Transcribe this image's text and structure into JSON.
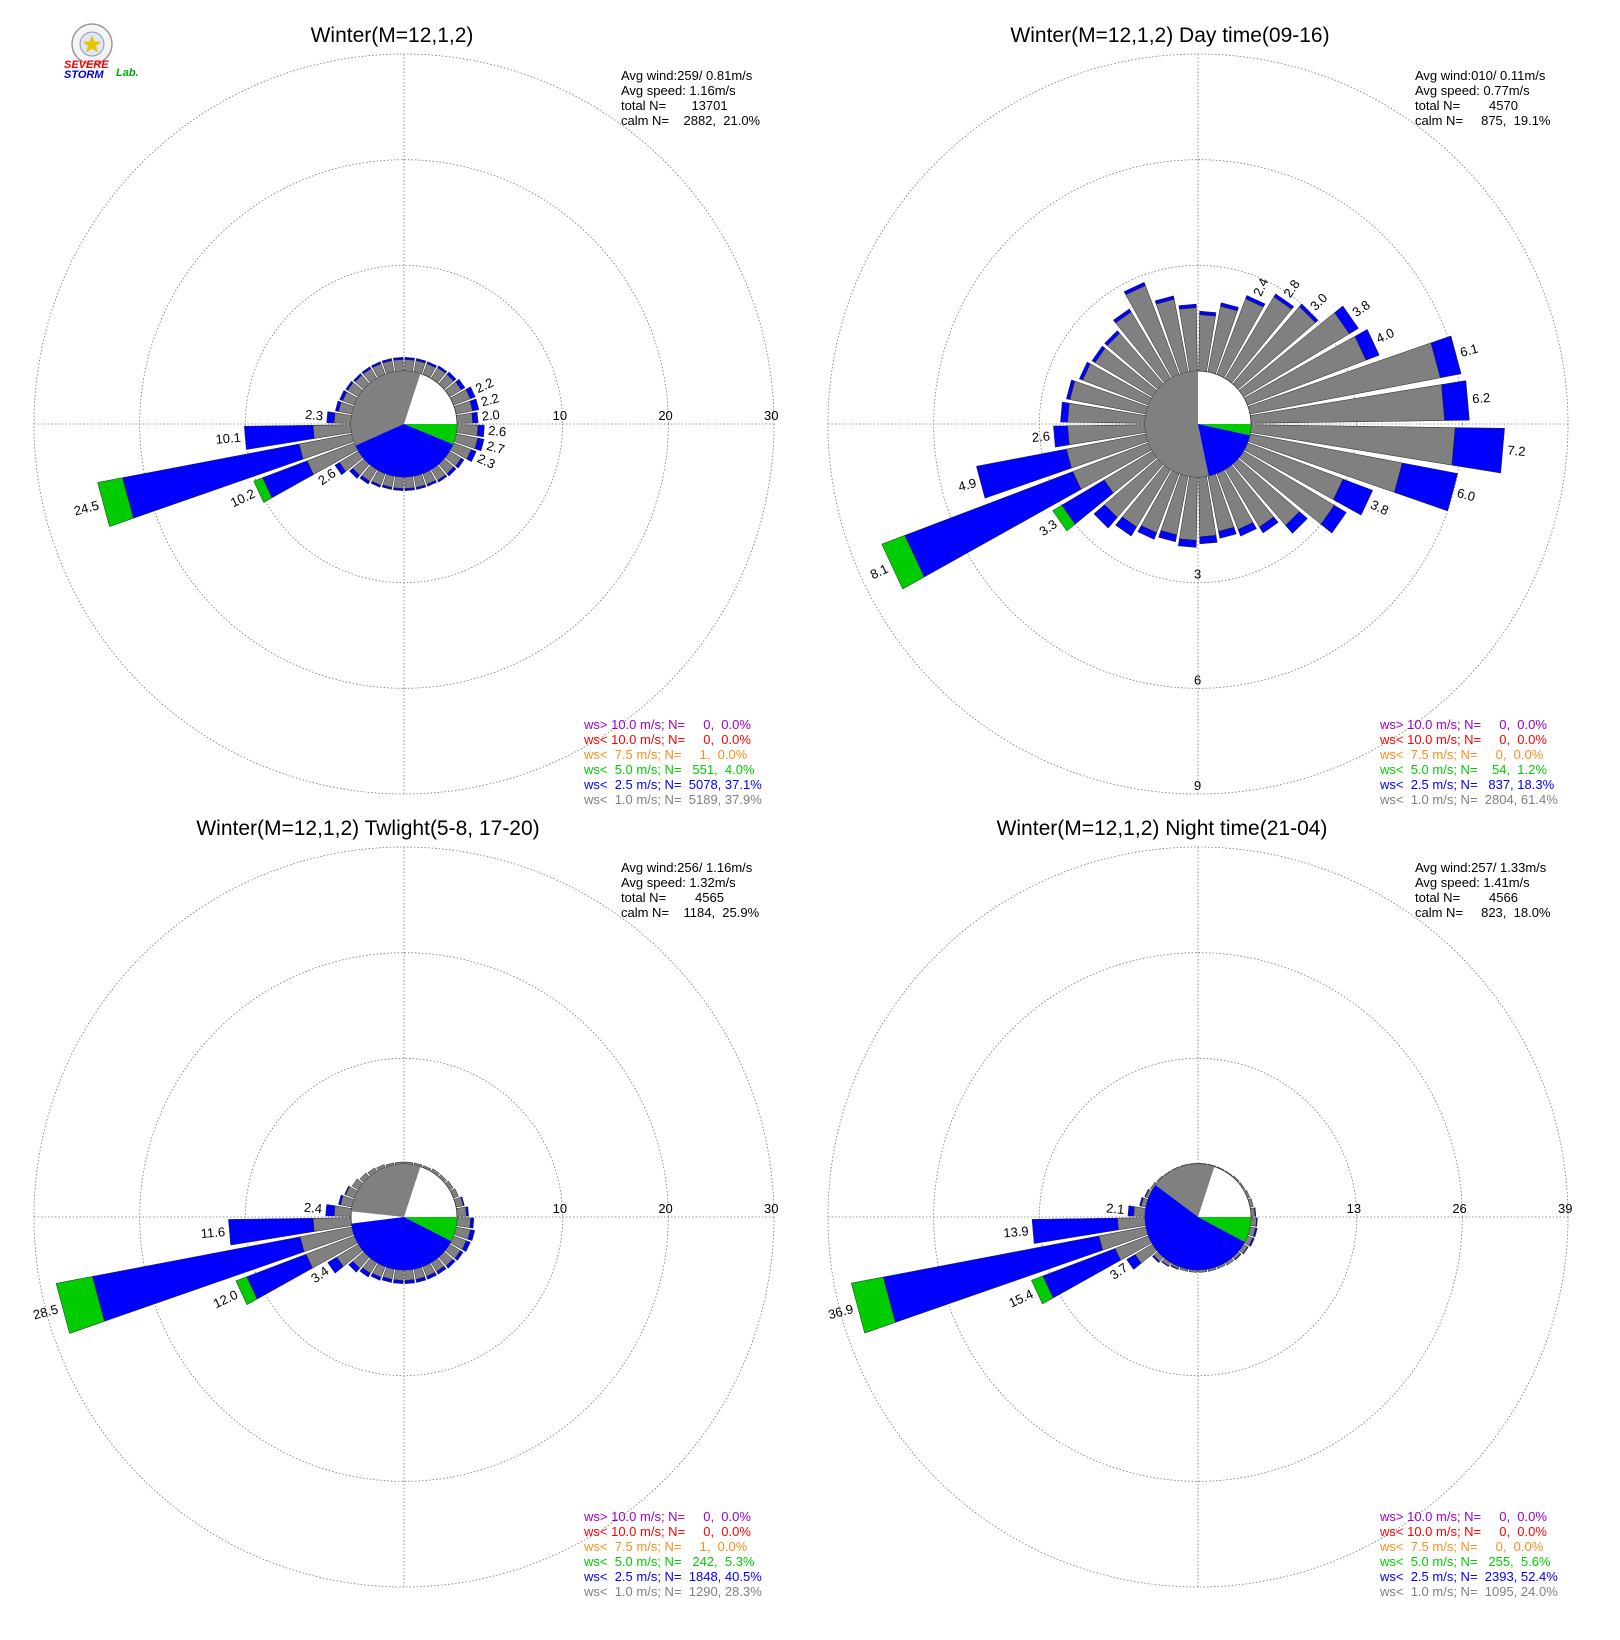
{
  "logo": {
    "text_severe": "SEVERE",
    "text_storm": "STORM",
    "text_lab": "Lab."
  },
  "colors": {
    "ws_gt10": "#9900cc",
    "ws_lt10": "#ff0000",
    "ws_lt7_5": "#ff8c1a",
    "ws_lt5": "#00cc00",
    "ws_lt2_5": "#0000ff",
    "ws_lt1": "#808080"
  },
  "chart_data": [
    {
      "type": "windrose",
      "title": "Winter(M=12,1,2)",
      "stats": [
        "Avg wind:259/ 0.81m/s",
        "Avg speed: 1.16m/s",
        "total N=       13701",
        "calm N=    2882,  21.0%"
      ],
      "rmax": 30,
      "ring_labels": [
        "10",
        "20",
        "30"
      ],
      "ring_label_dir": "east",
      "calm_pie": [
        {
          "category": "ws< 1.0",
          "percent": 37.9
        },
        {
          "category": "ws< 2.5",
          "percent": 37.1
        },
        {
          "category": "ws< 5.0",
          "percent": 4.0
        },
        {
          "category": "ws< 7.5",
          "percent": 0.0
        }
      ],
      "petals": [
        {
          "dir": 5,
          "total": 1.3,
          "blue": 0.2
        },
        {
          "dir": 15,
          "total": 1.3,
          "blue": 0.2
        },
        {
          "dir": 25,
          "total": 1.3,
          "blue": 0.2
        },
        {
          "dir": 35,
          "total": 1.4,
          "blue": 0.2
        },
        {
          "dir": 45,
          "total": 1.5,
          "blue": 0.3
        },
        {
          "dir": 55,
          "total": 1.7,
          "blue": 0.4
        },
        {
          "dir": 65,
          "total": 2.2,
          "blue": 0.5,
          "label": "2.2"
        },
        {
          "dir": 75,
          "total": 2.2,
          "blue": 0.6,
          "label": "2.2"
        },
        {
          "dir": 85,
          "total": 2.0,
          "blue": 0.5,
          "label": "2.0"
        },
        {
          "dir": 95,
          "total": 2.6,
          "blue": 0.6,
          "label": "2.6"
        },
        {
          "dir": 105,
          "total": 2.7,
          "blue": 0.6,
          "label": "2.7"
        },
        {
          "dir": 115,
          "total": 2.3,
          "blue": 0.5,
          "label": "2.3"
        },
        {
          "dir": 125,
          "total": 1.6,
          "blue": 0.3
        },
        {
          "dir": 135,
          "total": 1.5,
          "blue": 0.3
        },
        {
          "dir": 145,
          "total": 1.4,
          "blue": 0.2
        },
        {
          "dir": 155,
          "total": 1.3,
          "blue": 0.2
        },
        {
          "dir": 165,
          "total": 1.3,
          "blue": 0.2
        },
        {
          "dir": 175,
          "total": 1.3,
          "blue": 0.2
        },
        {
          "dir": 185,
          "total": 1.3,
          "blue": 0.2
        },
        {
          "dir": 195,
          "total": 1.3,
          "blue": 0.2
        },
        {
          "dir": 205,
          "total": 1.4,
          "blue": 0.2
        },
        {
          "dir": 215,
          "total": 1.6,
          "blue": 0.3
        },
        {
          "dir": 225,
          "total": 1.8,
          "blue": 0.4
        },
        {
          "dir": 235,
          "total": 2.6,
          "blue": 0.5,
          "label": "2.6"
        },
        {
          "dir": 245,
          "total": 10.2,
          "blue": 4.5,
          "green": 0.9,
          "label": "10.2"
        },
        {
          "dir": 255,
          "total": 24.5,
          "blue": 17.0,
          "green": 2.4,
          "label": "24.5"
        },
        {
          "dir": 265,
          "total": 10.1,
          "blue": 6.5,
          "label": "10.1"
        },
        {
          "dir": 275,
          "total": 2.3,
          "blue": 0.7,
          "label": "2.3"
        },
        {
          "dir": 285,
          "total": 1.6,
          "blue": 0.3
        },
        {
          "dir": 295,
          "total": 1.5,
          "blue": 0.3
        },
        {
          "dir": 305,
          "total": 1.4,
          "blue": 0.2
        },
        {
          "dir": 315,
          "total": 1.3,
          "blue": 0.2
        },
        {
          "dir": 325,
          "total": 1.3,
          "blue": 0.2
        },
        {
          "dir": 335,
          "total": 1.3,
          "blue": 0.2
        },
        {
          "dir": 345,
          "total": 1.3,
          "blue": 0.2
        },
        {
          "dir": 355,
          "total": 1.3,
          "blue": 0.2
        }
      ],
      "legend": [
        {
          "text": "ws> 10.0 m/s; N=     0,  0.0%",
          "color": "#9900cc"
        },
        {
          "text": "ws< 10.0 m/s; N=     0,  0.0%",
          "color": "#ff0000"
        },
        {
          "text": "ws<  7.5 m/s; N=     1,  0.0%",
          "color": "#ff8c1a"
        },
        {
          "text": "ws<  5.0 m/s; N=   551,  4.0%",
          "color": "#00cc00"
        },
        {
          "text": "ws<  2.5 m/s; N=  5078, 37.1%",
          "color": "#0000ff"
        },
        {
          "text": "ws<  1.0 m/s; N=  5189, 37.9%",
          "color": "#808080"
        }
      ]
    },
    {
      "type": "windrose",
      "title": "Winter(M=12,1,2) Day time(09-16)",
      "stats": [
        "Avg wind:010/ 0.11m/s",
        "Avg speed: 0.77m/s",
        "total N=        4570",
        "calm N=     875,  19.1%"
      ],
      "rmax": 9,
      "ring_labels": [
        "3",
        "6",
        "9"
      ],
      "ring_label_dir": "south",
      "calm_pie": [
        {
          "category": "ws< 1.0",
          "percent": 61.4
        },
        {
          "category": "ws< 2.5",
          "percent": 18.3
        },
        {
          "category": "ws< 5.0",
          "percent": 1.2
        },
        {
          "category": "ws< 7.5",
          "percent": 0.0
        }
      ],
      "petals": [
        {
          "dir": 5,
          "total": 1.7,
          "blue": 0.1
        },
        {
          "dir": 15,
          "total": 2.0,
          "blue": 0.1
        },
        {
          "dir": 25,
          "total": 2.4,
          "blue": 0.1,
          "label": "2.4"
        },
        {
          "dir": 35,
          "total": 2.8,
          "blue": 0.1,
          "label": "2.8"
        },
        {
          "dir": 45,
          "total": 3.0,
          "blue": 0.1,
          "label": "3.0"
        },
        {
          "dir": 55,
          "total": 3.8,
          "blue": 0.3,
          "label": "3.8"
        },
        {
          "dir": 65,
          "total": 4.0,
          "blue": 0.4,
          "label": "4.0"
        },
        {
          "dir": 75,
          "total": 6.1,
          "blue": 0.6,
          "label": "6.1"
        },
        {
          "dir": 85,
          "total": 6.2,
          "blue": 0.7,
          "label": "6.2"
        },
        {
          "dir": 95,
          "total": 7.2,
          "blue": 1.4,
          "label": "7.2"
        },
        {
          "dir": 105,
          "total": 6.0,
          "blue": 1.6,
          "label": "6.0"
        },
        {
          "dir": 115,
          "total": 3.8,
          "blue": 0.9,
          "label": "3.8"
        },
        {
          "dir": 125,
          "total": 3.4,
          "blue": 0.4
        },
        {
          "dir": 135,
          "total": 2.6,
          "blue": 0.3
        },
        {
          "dir": 145,
          "total": 2.1,
          "blue": 0.2
        },
        {
          "dir": 155,
          "total": 1.9,
          "blue": 0.2
        },
        {
          "dir": 165,
          "total": 1.8,
          "blue": 0.2
        },
        {
          "dir": 175,
          "total": 1.9,
          "blue": 0.2
        },
        {
          "dir": 185,
          "total": 2.0,
          "blue": 0.2
        },
        {
          "dir": 195,
          "total": 1.9,
          "blue": 0.2
        },
        {
          "dir": 205,
          "total": 2.0,
          "blue": 0.2
        },
        {
          "dir": 215,
          "total": 2.2,
          "blue": 0.3
        },
        {
          "dir": 225,
          "total": 2.4,
          "blue": 0.4
        },
        {
          "dir": 235,
          "total": 3.3,
          "blue": 1.4,
          "green": 0.3,
          "label": "3.3"
        },
        {
          "dir": 245,
          "total": 8.1,
          "blue": 5.1,
          "green": 0.7,
          "label": "8.1"
        },
        {
          "dir": 255,
          "total": 4.9,
          "blue": 2.6,
          "label": "4.9"
        },
        {
          "dir": 265,
          "total": 2.6,
          "blue": 0.4,
          "label": "2.6"
        },
        {
          "dir": 275,
          "total": 2.4,
          "blue": 0.2
        },
        {
          "dir": 285,
          "total": 2.3,
          "blue": 0.1
        },
        {
          "dir": 295,
          "total": 2.1,
          "blue": 0.1
        },
        {
          "dir": 305,
          "total": 2.0,
          "blue": 0.1
        },
        {
          "dir": 315,
          "total": 2.0,
          "blue": 0.1
        },
        {
          "dir": 325,
          "total": 2.3,
          "blue": 0.1
        },
        {
          "dir": 335,
          "total": 2.8,
          "blue": 0.1
        },
        {
          "dir": 345,
          "total": 2.2,
          "blue": 0.1
        },
        {
          "dir": 355,
          "total": 1.9,
          "blue": 0.1
        }
      ],
      "legend": [
        {
          "text": "ws> 10.0 m/s; N=     0,  0.0%",
          "color": "#9900cc"
        },
        {
          "text": "ws< 10.0 m/s; N=     0,  0.0%",
          "color": "#ff0000"
        },
        {
          "text": "ws<  7.5 m/s; N=     0,  0.0%",
          "color": "#ff8c1a"
        },
        {
          "text": "ws<  5.0 m/s; N=    54,  1.2%",
          "color": "#00cc00"
        },
        {
          "text": "ws<  2.5 m/s; N=   837, 18.3%",
          "color": "#0000ff"
        },
        {
          "text": "ws<  1.0 m/s; N=  2804, 61.4%",
          "color": "#808080"
        }
      ]
    },
    {
      "type": "windrose",
      "title": "Winter(M=12,1,2) Twlight(5-8, 17-20)",
      "stats": [
        "Avg wind:256/ 1.16m/s",
        "Avg speed: 1.32m/s",
        "total N=        4565",
        "calm N=    1184,  25.9%"
      ],
      "rmax": 30,
      "ring_labels": [
        "10",
        "20",
        "30"
      ],
      "ring_label_dir": "east",
      "calm_pie": [
        {
          "category": "ws< 1.0",
          "percent": 28.3
        },
        {
          "category": "ws< 2.5",
          "percent": 40.5
        },
        {
          "category": "ws< 5.0",
          "percent": 5.3
        },
        {
          "category": "ws< 7.5",
          "percent": 0.0
        }
      ],
      "petals": [
        {
          "dir": 5,
          "total": 0.2
        },
        {
          "dir": 15,
          "total": 0.2
        },
        {
          "dir": 25,
          "total": 0.2
        },
        {
          "dir": 35,
          "total": 0.3
        },
        {
          "dir": 45,
          "total": 0.3
        },
        {
          "dir": 55,
          "total": 0.4
        },
        {
          "dir": 65,
          "total": 0.5
        },
        {
          "dir": 75,
          "total": 0.8,
          "blue": 0.1
        },
        {
          "dir": 85,
          "total": 1.1,
          "blue": 0.2
        },
        {
          "dir": 95,
          "total": 1.6,
          "blue": 0.3
        },
        {
          "dir": 105,
          "total": 1.8,
          "blue": 0.4
        },
        {
          "dir": 115,
          "total": 1.7,
          "blue": 0.4
        },
        {
          "dir": 125,
          "total": 1.5,
          "blue": 0.3
        },
        {
          "dir": 135,
          "total": 1.4,
          "blue": 0.3
        },
        {
          "dir": 145,
          "total": 1.3,
          "blue": 0.3
        },
        {
          "dir": 155,
          "total": 1.3,
          "blue": 0.3
        },
        {
          "dir": 165,
          "total": 1.3,
          "blue": 0.3
        },
        {
          "dir": 175,
          "total": 1.3,
          "blue": 0.3
        },
        {
          "dir": 185,
          "total": 1.3,
          "blue": 0.3
        },
        {
          "dir": 195,
          "total": 1.3,
          "blue": 0.3
        },
        {
          "dir": 205,
          "total": 1.4,
          "blue": 0.3
        },
        {
          "dir": 215,
          "total": 1.6,
          "blue": 0.4
        },
        {
          "dir": 225,
          "total": 1.9,
          "blue": 0.5
        },
        {
          "dir": 235,
          "total": 3.4,
          "blue": 1.0,
          "label": "3.4"
        },
        {
          "dir": 245,
          "total": 12.0,
          "blue": 6.0,
          "green": 1.1,
          "label": "12.0"
        },
        {
          "dir": 255,
          "total": 28.5,
          "blue": 20.0,
          "green": 3.5,
          "label": "28.5"
        },
        {
          "dir": 265,
          "total": 11.6,
          "blue": 8.0,
          "label": "11.6"
        },
        {
          "dir": 275,
          "total": 2.4,
          "blue": 0.8,
          "label": "2.4"
        },
        {
          "dir": 285,
          "total": 1.3,
          "blue": 0.2
        },
        {
          "dir": 295,
          "total": 1.0,
          "blue": 0.1
        },
        {
          "dir": 305,
          "total": 0.7
        },
        {
          "dir": 315,
          "total": 0.5
        },
        {
          "dir": 325,
          "total": 0.4
        },
        {
          "dir": 335,
          "total": 0.3
        },
        {
          "dir": 345,
          "total": 0.2
        },
        {
          "dir": 355,
          "total": 0.2
        }
      ],
      "legend": [
        {
          "text": "ws> 10.0 m/s; N=     0,  0.0%",
          "color": "#9900cc"
        },
        {
          "text": "ws< 10.0 m/s; N=     0,  0.0%",
          "color": "#ff0000"
        },
        {
          "text": "ws<  7.5 m/s; N=     1,  0.0%",
          "color": "#ff8c1a"
        },
        {
          "text": "ws<  5.0 m/s; N=   242,  5.3%",
          "color": "#00cc00"
        },
        {
          "text": "ws<  2.5 m/s; N=  1848, 40.5%",
          "color": "#0000ff"
        },
        {
          "text": "ws<  1.0 m/s; N=  1290, 28.3%",
          "color": "#808080"
        }
      ]
    },
    {
      "type": "windrose",
      "title": "Winter(M=12,1,2) Night time(21-04)",
      "stats": [
        "Avg wind:257/ 1.33m/s",
        "Avg speed: 1.41m/s",
        "total N=        4566",
        "calm N=     823,  18.0%"
      ],
      "rmax": 39,
      "ring_labels": [
        "13",
        "26",
        "39"
      ],
      "ring_label_dir": "east",
      "calm_pie": [
        {
          "category": "ws< 1.0",
          "percent": 24.0
        },
        {
          "category": "ws< 2.5",
          "percent": 52.4
        },
        {
          "category": "ws< 5.0",
          "percent": 5.6
        },
        {
          "category": "ws< 7.5",
          "percent": 0.0
        }
      ],
      "petals": [
        {
          "dir": 5,
          "total": 0.1
        },
        {
          "dir": 15,
          "total": 0.1
        },
        {
          "dir": 25,
          "total": 0.1
        },
        {
          "dir": 35,
          "total": 0.1
        },
        {
          "dir": 45,
          "total": 0.2
        },
        {
          "dir": 55,
          "total": 0.2
        },
        {
          "dir": 65,
          "total": 0.3
        },
        {
          "dir": 75,
          "total": 0.4
        },
        {
          "dir": 85,
          "total": 0.6,
          "blue": 0.1
        },
        {
          "dir": 95,
          "total": 0.8,
          "blue": 0.1
        },
        {
          "dir": 105,
          "total": 0.9,
          "blue": 0.2
        },
        {
          "dir": 115,
          "total": 0.9,
          "blue": 0.2
        },
        {
          "dir": 125,
          "total": 0.7,
          "blue": 0.1
        },
        {
          "dir": 135,
          "total": 0.5,
          "blue": 0.1
        },
        {
          "dir": 145,
          "total": 0.4
        },
        {
          "dir": 155,
          "total": 0.3
        },
        {
          "dir": 165,
          "total": 0.3
        },
        {
          "dir": 175,
          "total": 0.3
        },
        {
          "dir": 185,
          "total": 0.3
        },
        {
          "dir": 195,
          "total": 0.3
        },
        {
          "dir": 205,
          "total": 0.4,
          "blue": 0.1
        },
        {
          "dir": 215,
          "total": 0.6,
          "blue": 0.1
        },
        {
          "dir": 225,
          "total": 0.9,
          "blue": 0.2
        },
        {
          "dir": 235,
          "total": 3.7,
          "blue": 1.2,
          "label": "3.7"
        },
        {
          "dir": 245,
          "total": 15.4,
          "blue": 9.5,
          "green": 1.5,
          "label": "15.4"
        },
        {
          "dir": 255,
          "total": 36.9,
          "blue": 27.0,
          "green": 4.0,
          "label": "36.9"
        },
        {
          "dir": 265,
          "total": 13.9,
          "blue": 10.5,
          "label": "13.9"
        },
        {
          "dir": 275,
          "total": 2.1,
          "blue": 0.7,
          "label": "2.1"
        },
        {
          "dir": 285,
          "total": 0.8,
          "blue": 0.2
        },
        {
          "dir": 295,
          "total": 0.5,
          "blue": 0.1
        },
        {
          "dir": 305,
          "total": 0.3
        },
        {
          "dir": 315,
          "total": 0.2
        },
        {
          "dir": 325,
          "total": 0.1
        },
        {
          "dir": 335,
          "total": 0.1
        },
        {
          "dir": 345,
          "total": 0.1
        },
        {
          "dir": 355,
          "total": 0.1
        }
      ],
      "legend": [
        {
          "text": "ws> 10.0 m/s; N=     0,  0.0%",
          "color": "#9900cc"
        },
        {
          "text": "ws< 10.0 m/s; N=     0,  0.0%",
          "color": "#ff0000"
        },
        {
          "text": "ws<  7.5 m/s; N=     0,  0.0%",
          "color": "#ff8c1a"
        },
        {
          "text": "ws<  5.0 m/s; N=   255,  5.6%",
          "color": "#00cc00"
        },
        {
          "text": "ws<  2.5 m/s; N=  2393, 52.4%",
          "color": "#0000ff"
        },
        {
          "text": "ws<  1.0 m/s; N=  1095, 24.0%",
          "color": "#808080"
        }
      ]
    }
  ]
}
